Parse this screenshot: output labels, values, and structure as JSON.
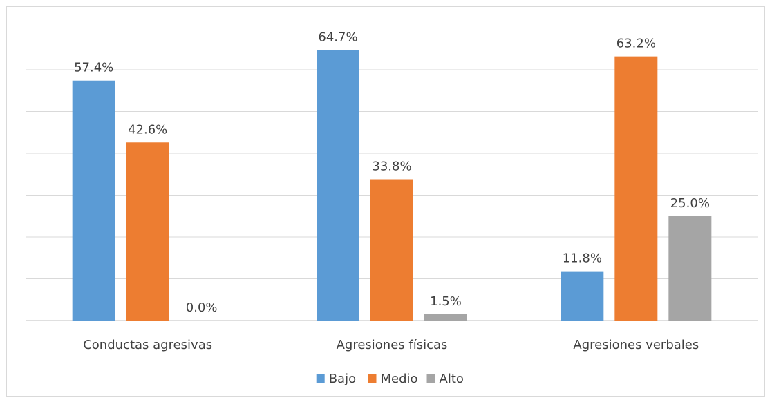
{
  "chart_data": {
    "type": "bar",
    "categories": [
      "Conductas agresivas",
      "Agresiones físicas",
      "Agresiones verbales"
    ],
    "series": [
      {
        "name": "Bajo",
        "color": "#5B9BD5",
        "values": [
          57.4,
          64.7,
          11.8
        ],
        "labels": [
          "57.4%",
          "64.7%",
          "11.8%"
        ]
      },
      {
        "name": "Medio",
        "color": "#ED7D31",
        "values": [
          42.6,
          33.8,
          63.2
        ],
        "labels": [
          "42.6%",
          "33.8%",
          "63.2%"
        ]
      },
      {
        "name": "Alto",
        "color": "#A5A5A5",
        "values": [
          0.0,
          1.5,
          25.0
        ],
        "labels": [
          "0.0%",
          "1.5%",
          "25.0%"
        ]
      }
    ],
    "ylim": [
      0,
      70
    ],
    "gridlines": true,
    "y_axis_labels": false,
    "legend_position": "bottom"
  }
}
